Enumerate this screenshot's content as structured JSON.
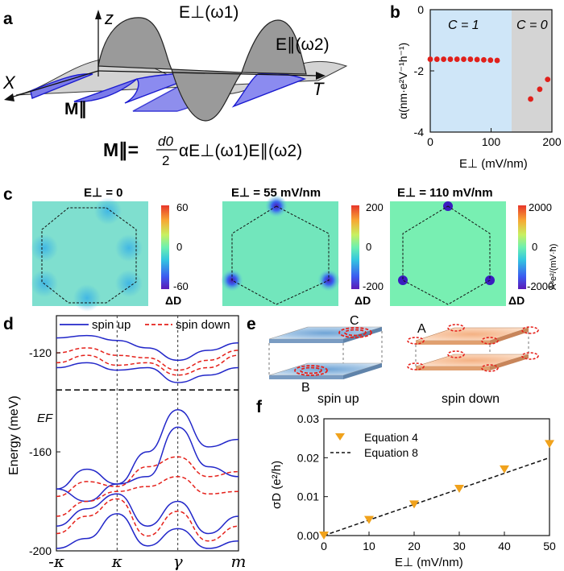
{
  "panel_labels": [
    "a",
    "b",
    "c",
    "d",
    "e",
    "f"
  ],
  "panel_a": {
    "axis_z": "z",
    "axis_x": "X",
    "axis_t": "T",
    "e_perp_label": "E⊥(ω1)",
    "e_par_label": "E∥(ω2)",
    "m_par_label": "M∥",
    "equation": "M∥ = (d0/2) α E⊥(ω1) E∥(ω2)",
    "eq_lhs": "M∥=",
    "eq_num": "d0",
    "eq_den": "2",
    "eq_rhs": "αE⊥(ω1)E∥(ω2)",
    "colors": {
      "e_perp_fill": "#9a9a9a",
      "e_par_fill": "#cfcfcf",
      "m_par_fill": "#7b7bea",
      "m_par_stroke": "#1a1ad0"
    }
  },
  "chart_data": [
    {
      "id": "b",
      "type": "scatter",
      "xlabel": "E⊥ (mV/nm)",
      "ylabel": "α(nm·e²V⁻¹h⁻¹)",
      "xlim": [
        0,
        200
      ],
      "ylim": [
        -4,
        0
      ],
      "xticks": [
        0,
        100,
        200
      ],
      "yticks": [
        0,
        -2,
        -4
      ],
      "regions": [
        {
          "label": "C = 1",
          "x_range": [
            0,
            135
          ],
          "color": "#cfe6f8"
        },
        {
          "label": "C = 0",
          "x_range": [
            135,
            200
          ],
          "color": "#d4d4d4"
        }
      ],
      "series": [
        {
          "name": "C=1",
          "color": "#e0201b",
          "x": [
            0,
            11,
            22,
            33,
            44,
            55,
            66,
            77,
            88,
            99,
            110
          ],
          "y": [
            -1.62,
            -1.62,
            -1.62,
            -1.62,
            -1.62,
            -1.62,
            -1.62,
            -1.63,
            -1.64,
            -1.65,
            -1.66
          ]
        },
        {
          "name": "C=0",
          "color": "#e0201b",
          "x": [
            165,
            180,
            193
          ],
          "y": [
            -2.92,
            -2.6,
            -2.28
          ]
        }
      ]
    },
    {
      "id": "c",
      "type": "heatmap",
      "maps": [
        {
          "title": "E⊥ = 0",
          "vmax": "60",
          "vmid": "0",
          "vmin": "-60",
          "cbar_label": "ΔD",
          "mode": "zero"
        },
        {
          "title": "E⊥ = 55 mV/nm",
          "vmax": "200",
          "vmid": "0",
          "vmin": "-200",
          "cbar_label": "ΔD",
          "mode": "mid"
        },
        {
          "title": "E⊥ = 110 mV/nm",
          "vmax": "2000",
          "vmid": "0",
          "vmin": "-2000",
          "cbar_label": "ΔD",
          "mode": "high"
        }
      ],
      "unit_label": "Å³e²/(mV·ħ)"
    },
    {
      "id": "d",
      "type": "line",
      "ylabel": "Energy (meV)",
      "ylim": [
        -200,
        -105
      ],
      "yticks": [
        -120,
        -160,
        -200
      ],
      "xticks": [
        "-κ",
        "κ",
        "γ",
        "m"
      ],
      "fermi_label": "EF",
      "fermi_energy": -135,
      "legend": [
        {
          "name": "spin up",
          "color": "#2227c9",
          "style": "solid"
        },
        {
          "name": "spin down",
          "color": "#e5211b",
          "style": "dashed"
        }
      ],
      "series": [
        {
          "name": "spin up",
          "color": "#2227c9",
          "style": "solid",
          "x": [
            0,
            0.5,
            1,
            1.5,
            2,
            2.5,
            3
          ],
          "y": [
            -114,
            -113,
            -115,
            -118,
            -123,
            -119,
            -116
          ]
        },
        {
          "name": "spin up",
          "color": "#2227c9",
          "style": "solid",
          "x": [
            0,
            0.5,
            1,
            1.5,
            2,
            2.5,
            3
          ],
          "y": [
            -126,
            -124,
            -127,
            -126,
            -132,
            -129,
            -126
          ]
        },
        {
          "name": "spin down",
          "color": "#e5211b",
          "style": "dashed",
          "x": [
            0,
            0.5,
            1,
            1.5,
            2,
            2.5,
            3
          ],
          "y": [
            -120,
            -118,
            -121,
            -122,
            -127,
            -123,
            -119
          ]
        },
        {
          "name": "spin down",
          "color": "#e5211b",
          "style": "dashed",
          "x": [
            0,
            0.5,
            1,
            1.5,
            2,
            2.5,
            3
          ],
          "y": [
            -124,
            -121,
            -125,
            -124,
            -129,
            -126,
            -121
          ]
        },
        {
          "name": "spin up",
          "color": "#2227c9",
          "style": "solid",
          "x": [
            0,
            0.5,
            1,
            1.5,
            2,
            2.5,
            3
          ],
          "y": [
            -175,
            -167,
            -173,
            -160,
            -143,
            -158,
            -155
          ]
        },
        {
          "name": "spin up",
          "color": "#2227c9",
          "style": "solid",
          "x": [
            0,
            0.5,
            1,
            1.5,
            2,
            2.5,
            3
          ],
          "y": [
            -175,
            -180,
            -173,
            -170,
            -150,
            -166,
            -170
          ]
        },
        {
          "name": "spin down",
          "color": "#e5211b",
          "style": "dashed",
          "x": [
            0,
            0.5,
            1,
            1.5,
            2,
            2.5,
            3
          ],
          "y": [
            -178,
            -172,
            -174,
            -166,
            -162,
            -170,
            -168
          ]
        },
        {
          "name": "spin down",
          "color": "#e5211b",
          "style": "dashed",
          "x": [
            0,
            0.5,
            1,
            1.5,
            2,
            2.5,
            3
          ],
          "y": [
            -186,
            -180,
            -176,
            -174,
            -170,
            -177,
            -176
          ]
        },
        {
          "name": "spin up",
          "color": "#2227c9",
          "style": "solid",
          "x": [
            0,
            0.5,
            1,
            1.5,
            2,
            2.5,
            3
          ],
          "y": [
            -190,
            -183,
            -177,
            -190,
            -180,
            -193,
            -186
          ]
        },
        {
          "name": "spin down",
          "color": "#e5211b",
          "style": "dashed",
          "x": [
            0,
            0.5,
            1,
            1.5,
            2,
            2.5,
            3
          ],
          "y": [
            -193,
            -186,
            -179,
            -194,
            -184,
            -196,
            -190
          ]
        },
        {
          "name": "spin up",
          "color": "#2227c9",
          "style": "solid",
          "x": [
            0,
            0.5,
            1,
            1.5,
            2,
            2.5,
            3
          ],
          "y": [
            -199,
            -195,
            -185,
            -198,
            -191,
            -199,
            -196
          ]
        }
      ]
    },
    {
      "id": "f",
      "type": "scatter",
      "xlabel": "E⊥ (mV/nm)",
      "ylabel": "σD (e²/h)",
      "xlim": [
        0,
        50
      ],
      "ylim": [
        0,
        0.03
      ],
      "xticks": [
        0,
        10,
        20,
        30,
        40,
        50
      ],
      "yticks": [
        "0.00",
        "0.01",
        "0.02",
        "0.03"
      ],
      "series": [
        {
          "name": "Equation 4",
          "type": "scatter",
          "marker": "triangle-down",
          "color": "#f0a21c",
          "x": [
            0,
            10,
            20,
            30,
            40,
            50
          ],
          "y": [
            0.0,
            0.004,
            0.008,
            0.012,
            0.017,
            0.0235
          ]
        },
        {
          "name": "Equation 8",
          "type": "line",
          "style": "dashed",
          "color": "#111111",
          "x": [
            0,
            50
          ],
          "y": [
            0,
            0.02
          ]
        }
      ]
    }
  ],
  "panel_e": {
    "spin_up_label": "spin up",
    "spin_down_label": "spin down",
    "valley_c": "C",
    "valley_b": "B",
    "valley_a": "A"
  }
}
